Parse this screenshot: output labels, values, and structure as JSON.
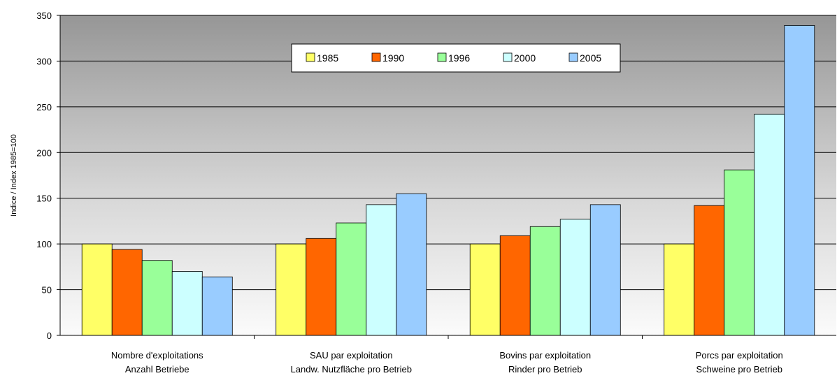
{
  "chart_data": {
    "type": "bar",
    "title": "",
    "ylabel": "Indice / Index 1985=100",
    "ylim": [
      0,
      350
    ],
    "yticks": [
      0,
      50,
      100,
      150,
      200,
      250,
      300,
      350
    ],
    "grid": true,
    "legend_position": "top",
    "categories": [
      [
        "Nombre d'exploitations",
        "Anzahl Betriebe"
      ],
      [
        "SAU par exploitation",
        "Landw. Nutzfläche pro Betrieb"
      ],
      [
        "Bovins par exploitation",
        "Rinder pro Betrieb"
      ],
      [
        "Porcs par exploitation",
        "Schweine pro Betrieb"
      ]
    ],
    "series": [
      {
        "name": "1985",
        "color": "#ffff66",
        "values": [
          100,
          100,
          100,
          100
        ]
      },
      {
        "name": "1990",
        "color": "#ff6600",
        "values": [
          94,
          106,
          109,
          142
        ]
      },
      {
        "name": "1996",
        "color": "#99ff99",
        "values": [
          82,
          123,
          119,
          181
        ]
      },
      {
        "name": "2000",
        "color": "#ccffff",
        "values": [
          70,
          143,
          127,
          242
        ]
      },
      {
        "name": "2005",
        "color": "#99ccff",
        "values": [
          64,
          155,
          143,
          339
        ]
      }
    ]
  }
}
